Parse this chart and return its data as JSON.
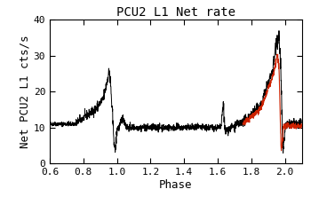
{
  "title": "PCU2 L1 Net rate",
  "xlabel": "Phase",
  "ylabel": "Net PCU2 L1 cts/s",
  "xlim": [
    0.6,
    2.1
  ],
  "ylim": [
    0,
    40
  ],
  "xticks": [
    0.6,
    0.8,
    1.0,
    1.2,
    1.4,
    1.6,
    1.8,
    2.0
  ],
  "yticks": [
    0,
    10,
    20,
    30,
    40
  ],
  "black_color": "#000000",
  "red_color": "#cc2200",
  "background_color": "#ffffff",
  "title_fontsize": 10,
  "label_fontsize": 9,
  "tick_fontsize": 8,
  "linewidth_black": 0.7,
  "linewidth_red": 0.8
}
